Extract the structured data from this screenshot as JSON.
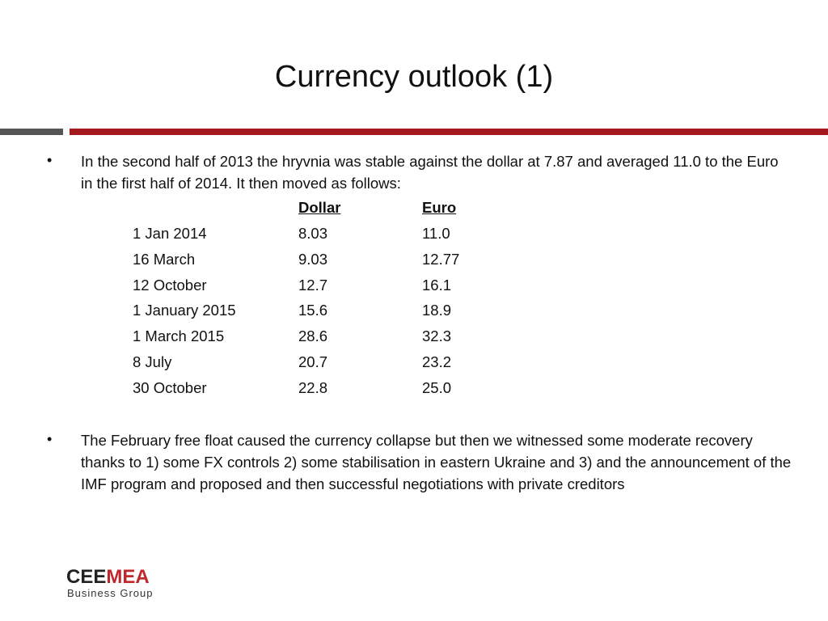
{
  "header": {
    "title": "Currency outlook (1)"
  },
  "bullets": [
    "In the second half of 2013 the hryvnia was stable against the dollar at 7.87 and averaged 11.0 to the Euro in the first half of 2014. It then moved as follows:",
    "The February free float caused the currency collapse but then we witnessed some moderate recovery thanks to 1) some FX controls 2) some stabilisation in eastern Ukraine and 3) and the announcement of the IMF program and proposed and then successful negotiations with private creditors"
  ],
  "table": {
    "columns": [
      "Dollar",
      "Euro"
    ],
    "rows": [
      [
        "1 Jan 2014",
        "8.03",
        "11.0"
      ],
      [
        "16 March",
        "9.03",
        "12.77"
      ],
      [
        "12 October",
        "12.7",
        "16.1"
      ],
      [
        "1 January 2015",
        "15.6",
        "18.9"
      ],
      [
        "1 March 2015",
        "28.6",
        "32.3"
      ],
      [
        "8 July",
        "20.7",
        "23.2"
      ],
      [
        "30 October",
        "22.8",
        "25.0"
      ]
    ]
  },
  "logo": {
    "name_part1": "CEE",
    "name_part2": "MEA",
    "tagline": "Business Group"
  }
}
